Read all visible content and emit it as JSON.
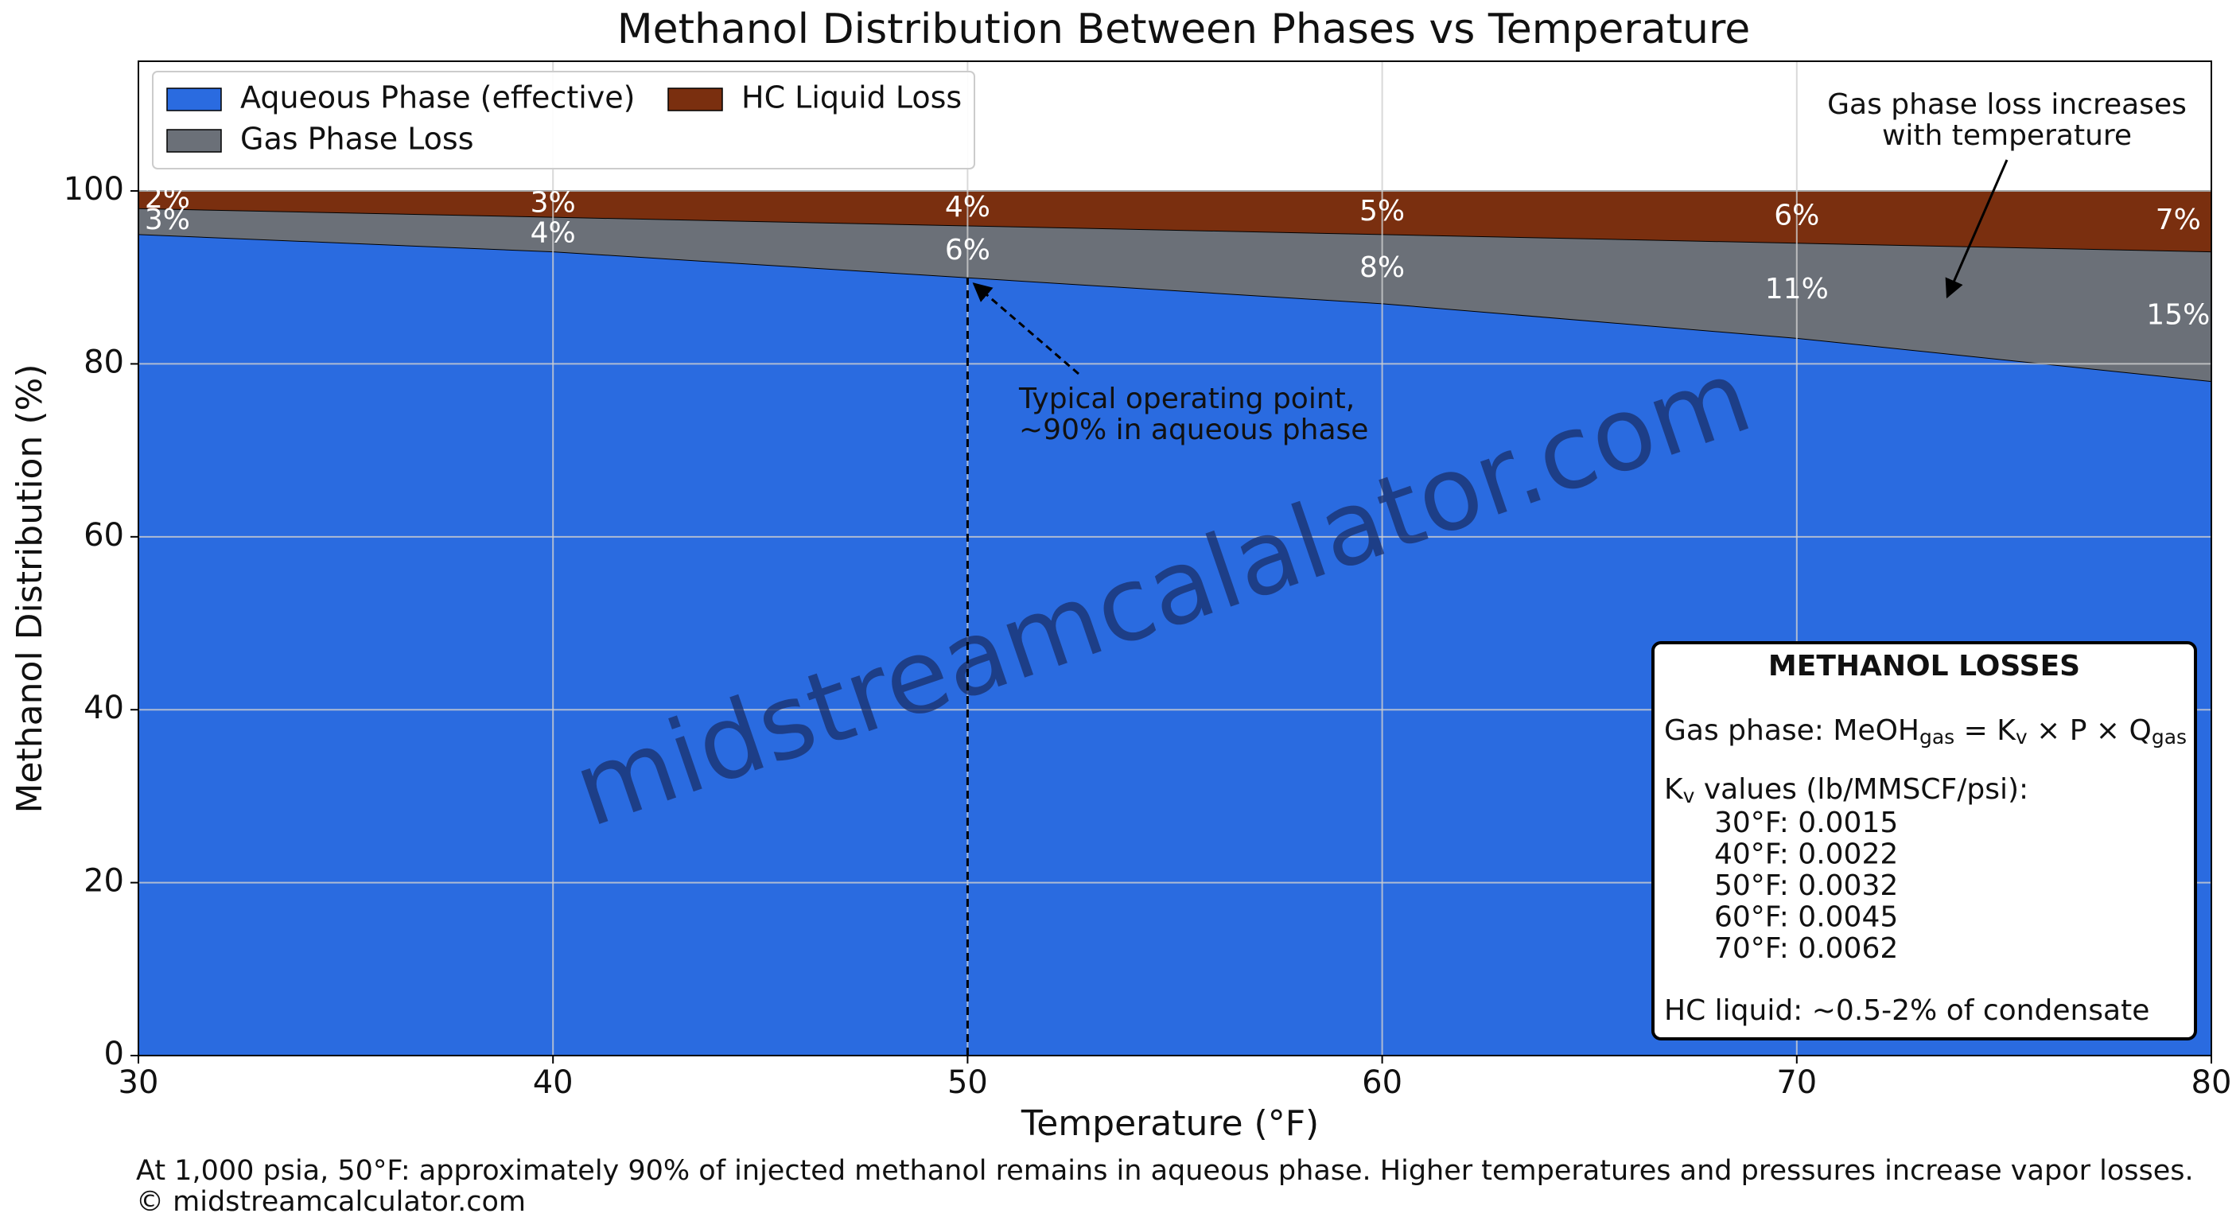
{
  "chart_data": {
    "type": "stacked_area",
    "title": "Methanol Distribution Between Phases vs Temperature",
    "x_label": "Temperature (°F)",
    "y_label": "Methanol Distribution (%)",
    "x": [
      30,
      40,
      50,
      60,
      70,
      80
    ],
    "series": [
      {
        "name": "Aqueous Phase (effective)",
        "color": "#2a6be0",
        "values": [
          95,
          93,
          90,
          87,
          83,
          78
        ]
      },
      {
        "name": "Gas Phase Loss",
        "color": "#6b7078",
        "values": [
          3,
          4,
          6,
          8,
          11,
          15
        ],
        "value_labels": [
          "3%",
          "4%",
          "6%",
          "8%",
          "11%",
          "15%"
        ]
      },
      {
        "name": "HC Liquid Loss",
        "color": "#7a2f0f",
        "values": [
          2,
          3,
          4,
          5,
          6,
          7
        ],
        "value_labels": [
          "2%",
          "3%",
          "4%",
          "5%",
          "6%",
          "7%"
        ]
      }
    ],
    "xlim": [
      30,
      80
    ],
    "xticks": [
      30,
      40,
      50,
      60,
      70,
      80
    ],
    "ylim": [
      0,
      115
    ],
    "yticks": [
      0,
      20,
      40,
      60,
      80,
      100
    ],
    "grid": true,
    "legend": "upper left",
    "annotations": [
      {
        "text": [
          "Typical operating point,",
          "~90% in aqueous phase"
        ],
        "x": 50,
        "y": 90
      },
      {
        "text": [
          "Gas phase loss increases",
          "with temperature"
        ]
      }
    ],
    "info_box": {
      "title": "METHANOL LOSSES",
      "formula": [
        "Gas phase: MeOH",
        "gas",
        " = K",
        "v",
        " × P × Q",
        "gas"
      ],
      "kv_heading": [
        "K",
        "v",
        " values (lb/MMSCF/psi):"
      ],
      "kv_values": [
        "30°F: 0.0015",
        "40°F: 0.0022",
        "50°F: 0.0032",
        "60°F: 0.0045",
        "70°F: 0.0062"
      ],
      "hc_line": "HC liquid: ~0.5-2% of condensate"
    },
    "watermark": "midstreamcalalator.com",
    "footer": [
      "At 1,000 psia, 50°F: approximately 90% of injected methanol remains in aqueous phase. Higher temperatures and pressures increase vapor losses.",
      "© midstreamcalculator.com"
    ]
  }
}
